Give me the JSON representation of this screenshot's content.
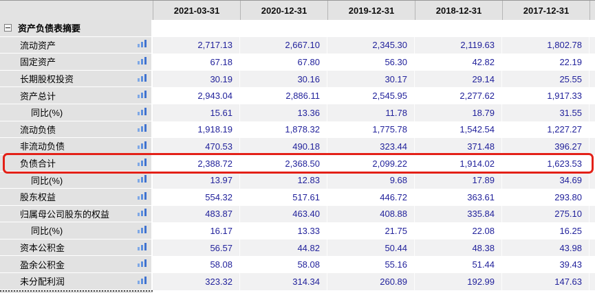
{
  "table": {
    "columns": [
      "2021-03-31",
      "2020-12-31",
      "2019-12-31",
      "2018-12-31",
      "2017-12-31"
    ],
    "rows": [
      {
        "label": "资产负债表摘要",
        "type": "section",
        "values": [
          "",
          "",
          "",
          "",
          ""
        ]
      },
      {
        "label": "流动资产",
        "indent": 1,
        "icon": "bar-chart",
        "values": [
          "2,717.13",
          "2,667.10",
          "2,345.30",
          "2,119.63",
          "1,802.78"
        ]
      },
      {
        "label": "固定资产",
        "indent": 1,
        "icon": "bar-chart",
        "values": [
          "67.18",
          "67.80",
          "56.30",
          "42.82",
          "22.19"
        ]
      },
      {
        "label": "长期股权投资",
        "indent": 1,
        "icon": "bar-chart",
        "values": [
          "30.19",
          "30.16",
          "30.17",
          "29.14",
          "25.55"
        ]
      },
      {
        "label": "资产总计",
        "indent": 1,
        "icon": "bar-chart",
        "values": [
          "2,943.04",
          "2,886.11",
          "2,545.95",
          "2,277.62",
          "1,917.33"
        ]
      },
      {
        "label": "同比(%)",
        "indent": 2,
        "icon": "bar-chart",
        "values": [
          "15.61",
          "13.36",
          "11.78",
          "18.79",
          "31.55"
        ]
      },
      {
        "label": "流动负债",
        "indent": 1,
        "icon": "bar-chart",
        "values": [
          "1,918.19",
          "1,878.32",
          "1,775.78",
          "1,542.54",
          "1,227.27"
        ]
      },
      {
        "label": "非流动负债",
        "indent": 1,
        "icon": "bar-chart",
        "values": [
          "470.53",
          "490.18",
          "323.44",
          "371.48",
          "396.27"
        ]
      },
      {
        "label": "负债合计",
        "indent": 1,
        "icon": "bar-chart",
        "highlighted": true,
        "values": [
          "2,388.72",
          "2,368.50",
          "2,099.22",
          "1,914.02",
          "1,623.53"
        ]
      },
      {
        "label": "同比(%)",
        "indent": 2,
        "icon": "bar-chart",
        "values": [
          "13.97",
          "12.83",
          "9.68",
          "17.89",
          "34.69"
        ]
      },
      {
        "label": "股东权益",
        "indent": 1,
        "icon": "bar-chart",
        "values": [
          "554.32",
          "517.61",
          "446.72",
          "363.61",
          "293.80"
        ]
      },
      {
        "label": "归属母公司股东的权益",
        "indent": 1,
        "icon": "bar-chart",
        "values": [
          "483.87",
          "463.40",
          "408.88",
          "335.84",
          "275.10"
        ]
      },
      {
        "label": "同比(%)",
        "indent": 2,
        "icon": "bar-chart",
        "values": [
          "16.17",
          "13.33",
          "21.75",
          "22.08",
          "16.25"
        ]
      },
      {
        "label": "资本公积金",
        "indent": 1,
        "icon": "bar-chart",
        "values": [
          "56.57",
          "44.82",
          "50.44",
          "48.38",
          "43.98"
        ]
      },
      {
        "label": "盈余公积金",
        "indent": 1,
        "icon": "bar-chart",
        "values": [
          "58.08",
          "58.08",
          "55.16",
          "51.44",
          "39.43"
        ]
      },
      {
        "label": "未分配利润",
        "indent": 1,
        "icon": "bar-chart",
        "values": [
          "323.32",
          "314.34",
          "260.89",
          "192.99",
          "147.63"
        ]
      }
    ],
    "colors": {
      "value_text": "#21219b",
      "highlight_border": "#e32017",
      "bar_icon_light": "#7ea8e6",
      "bar_icon_mid": "#5c8ede",
      "bar_icon_dark": "#3f72cf",
      "header_bg": "#e3e3e3",
      "label_bg": "#e2e2e2",
      "stripe_bg": "#f1f1f2"
    }
  }
}
